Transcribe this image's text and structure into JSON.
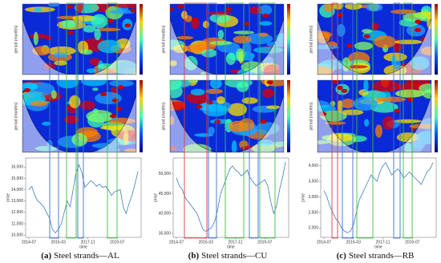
{
  "chart_data": [
    {
      "type": "line",
      "label": "(a)",
      "caption": "Steel strands—AL",
      "heatmap_ylabel": "period (months)",
      "xlabel": "time",
      "ylabel": "price",
      "color": "#3a7fc1",
      "x": [
        "2014-07",
        "2014-09",
        "2014-11",
        "2015-01",
        "2015-03",
        "2015-05",
        "2015-07",
        "2015-09",
        "2015-11",
        "2016-01",
        "2016-03",
        "2016-05",
        "2016-07",
        "2016-09",
        "2016-11",
        "2017-01",
        "2017-03",
        "2017-05",
        "2017-07",
        "2017-09",
        "2017-11",
        "2018-01",
        "2018-03",
        "2018-05",
        "2018-07",
        "2018-09",
        "2018-11",
        "2019-01",
        "2019-03",
        "2019-05",
        "2019-07",
        "2019-09",
        "2019-11",
        "2020-01",
        "2020-03",
        "2020-05",
        "2020-07",
        "2020-09"
      ],
      "values": [
        14000,
        14300,
        13500,
        13000,
        12800,
        12500,
        12000,
        11500,
        10500,
        10200,
        10500,
        11000,
        12000,
        13000,
        12500,
        14000,
        15500,
        16200,
        15500,
        14200,
        14500,
        14800,
        14600,
        14300,
        14500,
        14200,
        14300,
        14000,
        13500,
        13800,
        13900,
        14000,
        12500,
        11900,
        12800,
        13500,
        14500,
        15600
      ],
      "ylim": [
        9800,
        16800
      ],
      "yticks": [
        {
          "value": 10000,
          "label": "10,000"
        },
        {
          "value": 11000,
          "label": "11,000"
        },
        {
          "value": 12000,
          "label": "12,000"
        },
        {
          "value": 13000,
          "label": "13,000"
        },
        {
          "value": 14000,
          "label": "14,000"
        },
        {
          "value": 15000,
          "label": "15,000"
        },
        {
          "value": 16000,
          "label": "16,000"
        }
      ],
      "xticks": [
        "2014-07",
        "2016-03",
        "2017-11",
        "2019-07"
      ]
    },
    {
      "type": "line",
      "label": "(b)",
      "caption": "Steel strands—CU",
      "heatmap_ylabel": "period (months)",
      "xlabel": "time",
      "ylabel": "price",
      "color": "#3a7fc1",
      "x": [
        "2014-07",
        "2014-09",
        "2014-11",
        "2015-01",
        "2015-03",
        "2015-05",
        "2015-07",
        "2015-09",
        "2015-11",
        "2016-01",
        "2016-03",
        "2016-05",
        "2016-07",
        "2016-09",
        "2016-11",
        "2017-01",
        "2017-03",
        "2017-05",
        "2017-07",
        "2017-09",
        "2017-11",
        "2018-01",
        "2018-03",
        "2018-05",
        "2018-07",
        "2018-09",
        "2018-11",
        "2019-01",
        "2019-03",
        "2019-05",
        "2019-07",
        "2019-09",
        "2019-11",
        "2020-01",
        "2020-03",
        "2020-05",
        "2020-07",
        "2020-09"
      ],
      "values": [
        49000,
        47000,
        46000,
        44000,
        43000,
        42000,
        41000,
        40000,
        38000,
        36000,
        35500,
        36000,
        36500,
        38000,
        41000,
        45000,
        47000,
        49000,
        51000,
        52000,
        51000,
        50500,
        49500,
        50000,
        51000,
        49000,
        48000,
        47000,
        47500,
        48000,
        48500,
        47000,
        43000,
        40000,
        42000,
        46000,
        49000,
        53000
      ],
      "ylim": [
        34000,
        54000
      ],
      "yticks": [
        {
          "value": 35000,
          "label": "35,000"
        },
        {
          "value": 40000,
          "label": "40,000"
        },
        {
          "value": 45000,
          "label": "45,000"
        },
        {
          "value": 50000,
          "label": "50,000"
        }
      ],
      "xticks": [
        "2014-07",
        "2016-03",
        "2017-11",
        "2019-07"
      ]
    },
    {
      "type": "line",
      "label": "(c)",
      "caption": "Steel strands—RB",
      "heatmap_ylabel": "period (months)",
      "xlabel": "time",
      "ylabel": "price",
      "color": "#3a7fc1",
      "x": [
        "2014-07",
        "2014-09",
        "2014-11",
        "2015-01",
        "2015-03",
        "2015-05",
        "2015-07",
        "2015-09",
        "2015-11",
        "2016-01",
        "2016-03",
        "2016-05",
        "2016-07",
        "2016-09",
        "2016-11",
        "2017-01",
        "2017-03",
        "2017-05",
        "2017-07",
        "2017-09",
        "2017-11",
        "2018-01",
        "2018-03",
        "2018-05",
        "2018-07",
        "2018-09",
        "2018-11",
        "2019-01",
        "2019-03",
        "2019-05",
        "2019-07",
        "2019-09",
        "2019-11",
        "2020-01",
        "2020-03",
        "2020-05",
        "2020-07",
        "2020-09"
      ],
      "values": [
        3200,
        3000,
        2700,
        2500,
        2300,
        2200,
        2000,
        1900,
        1850,
        1900,
        2100,
        2500,
        2900,
        3100,
        3300,
        3500,
        3700,
        3600,
        3500,
        3800,
        4000,
        4100,
        3900,
        3700,
        3800,
        3900,
        3800,
        3600,
        3700,
        3800,
        3700,
        3600,
        3500,
        3400,
        3600,
        3800,
        3900,
        4100
      ],
      "ylim": [
        1700,
        4250
      ],
      "yticks": [
        {
          "value": 2000,
          "label": "2,000"
        },
        {
          "value": 2500,
          "label": "2,500"
        },
        {
          "value": 3000,
          "label": "3,000"
        },
        {
          "value": 3500,
          "label": "3,500"
        },
        {
          "value": 4000,
          "label": "4,000"
        }
      ],
      "xticks": [
        "2014-07",
        "2016-03",
        "2017-11",
        "2019-07"
      ]
    }
  ]
}
